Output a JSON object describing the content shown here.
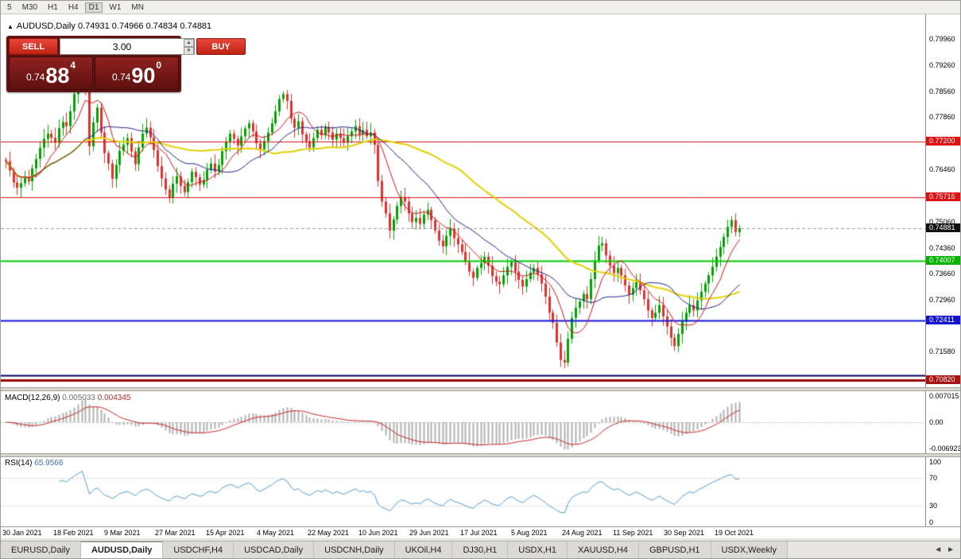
{
  "toolbar": {
    "timeframes": [
      {
        "label": "5"
      },
      {
        "label": "M30"
      },
      {
        "label": "H1"
      },
      {
        "label": "H4"
      },
      {
        "label": "D1",
        "active": true
      },
      {
        "label": "W1"
      },
      {
        "label": "MN"
      }
    ]
  },
  "header": {
    "collapse_icon": "▲",
    "title": "AUDUSD,Daily",
    "ohlc": "0.74931 0.74966 0.74834 0.74881"
  },
  "trade_panel": {
    "sell_label": "SELL",
    "buy_label": "BUY",
    "volume": "3.00",
    "spin_up": "▲",
    "spin_down": "▼",
    "sell": {
      "prefix": "0.74",
      "big": "88",
      "sup": "4"
    },
    "buy": {
      "prefix": "0.74",
      "big": "90",
      "sup": "0"
    }
  },
  "price_axis": {
    "ticks": [
      {
        "label": "0.79960",
        "price": 0.7996
      },
      {
        "label": "0.79260",
        "price": 0.7926
      },
      {
        "label": "0.78560",
        "price": 0.7856
      },
      {
        "label": "0.77860",
        "price": 0.7786
      },
      {
        "label": "0.76460",
        "price": 0.7646
      },
      {
        "label": "0.75060",
        "price": 0.7506
      },
      {
        "label": "0.74360",
        "price": 0.7436
      },
      {
        "label": "0.73660",
        "price": 0.7366
      },
      {
        "label": "0.72960",
        "price": 0.7296
      },
      {
        "label": "0.71580",
        "price": 0.7158
      }
    ],
    "badges": [
      {
        "label": "0.77200",
        "price": 0.772,
        "bg": "#dd1111"
      },
      {
        "label": "0.75716",
        "price": 0.75716,
        "bg": "#dd1111"
      },
      {
        "label": "0.74881",
        "price": 0.74881,
        "bg": "#111111",
        "current": true
      },
      {
        "label": "0.74007",
        "price": 0.74007,
        "bg": "#00b400"
      },
      {
        "label": "0.72411",
        "price": 0.72411,
        "bg": "#1414cc"
      },
      {
        "label": "0.70820",
        "price": 0.7082,
        "bg": "#aa1111"
      }
    ]
  },
  "macd_panel": {
    "label": "MACD(12,26,9)",
    "value_main": "0.005033",
    "value_signal": "0.004345",
    "scale": [
      {
        "label": "0.007015",
        "value": 0.007015
      },
      {
        "label": "0.00",
        "value": 0
      },
      {
        "label": "-0.006923",
        "value": -0.006923
      }
    ]
  },
  "rsi_panel": {
    "label": "RSI(14)",
    "value": "65.9566",
    "scale": [
      {
        "label": "100",
        "value": 100
      },
      {
        "label": "70",
        "value": 70
      },
      {
        "label": "30",
        "value": 30
      },
      {
        "label": "0",
        "value": 0
      }
    ]
  },
  "x_axis": {
    "labels": [
      "30 Jan 2021",
      "18 Feb 2021",
      "9 Mar 2021",
      "27 Mar 2021",
      "15 Apr 2021",
      "4 May 2021",
      "22 May 2021",
      "10 Jun 2021",
      "29 Jun 2021",
      "17 Jul 2021",
      "5 Aug 2021",
      "24 Aug 2021",
      "11 Sep 2021",
      "30 Sep 2021",
      "19 Oct 2021"
    ]
  },
  "tabs": {
    "items": [
      {
        "label": "EURUSD,Daily"
      },
      {
        "label": "AUDUSD,Daily",
        "active": true
      },
      {
        "label": "USDCHF,H4"
      },
      {
        "label": "USDCAD,Daily"
      },
      {
        "label": "USDCNH,Daily"
      },
      {
        "label": "UKOil,H4"
      },
      {
        "label": "DJ30,H1"
      },
      {
        "label": "USDX,H1"
      },
      {
        "label": "XAUUSD,H4"
      },
      {
        "label": "GBPUSD,H1"
      },
      {
        "label": "USDX,Weekly"
      }
    ],
    "scroll_left": "◄",
    "scroll_right": "►"
  },
  "chart_data": {
    "type": "candlestick",
    "symbol": "AUDUSD",
    "timeframe": "Daily",
    "ohlc_display": {
      "open": "0.74931",
      "high": "0.74966",
      "low": "0.74834",
      "close": "0.74881"
    },
    "ylim": [
      0.7062,
      0.8062
    ],
    "first_open": 0.7672,
    "closes": [
      0.7668,
      0.7643,
      0.7611,
      0.7597,
      0.7609,
      0.7626,
      0.7614,
      0.7649,
      0.7674,
      0.7704,
      0.7728,
      0.7742,
      0.7731,
      0.7718,
      0.7757,
      0.7773,
      0.7762,
      0.7802,
      0.7848,
      0.7892,
      0.795,
      0.7868,
      0.7708,
      0.7772,
      0.7812,
      0.7745,
      0.769,
      0.7662,
      0.7621,
      0.7658,
      0.7696,
      0.7712,
      0.773,
      0.7694,
      0.766,
      0.7705,
      0.7742,
      0.7758,
      0.7732,
      0.7698,
      0.7655,
      0.7622,
      0.7592,
      0.757,
      0.7608,
      0.7628,
      0.7602,
      0.7585,
      0.7612,
      0.764,
      0.7625,
      0.7605,
      0.7618,
      0.7645,
      0.7662,
      0.764,
      0.7658,
      0.7695,
      0.772,
      0.7742,
      0.7728,
      0.771,
      0.7735,
      0.7756,
      0.777,
      0.7748,
      0.7716,
      0.77,
      0.7722,
      0.7745,
      0.777,
      0.7802,
      0.7835,
      0.7848,
      0.783,
      0.7782,
      0.7758,
      0.7775,
      0.774,
      0.7722,
      0.7705,
      0.773,
      0.7752,
      0.7738,
      0.776,
      0.7745,
      0.7726,
      0.7742,
      0.773,
      0.7718,
      0.7735,
      0.7748,
      0.7762,
      0.774,
      0.7752,
      0.7735,
      0.7745,
      0.7712,
      0.7615,
      0.756,
      0.7528,
      0.7482,
      0.7512,
      0.7548,
      0.7572,
      0.756,
      0.7528,
      0.7505,
      0.7516,
      0.75,
      0.7525,
      0.7538,
      0.751,
      0.7482,
      0.7455,
      0.744,
      0.7468,
      0.7488,
      0.7462,
      0.7445,
      0.7425,
      0.7398,
      0.7372,
      0.7355,
      0.7382,
      0.7395,
      0.7412,
      0.7388,
      0.736,
      0.7345,
      0.7338,
      0.7362,
      0.7385,
      0.7398,
      0.7372,
      0.735,
      0.7332,
      0.7352,
      0.737,
      0.7382,
      0.7365,
      0.734,
      0.7305,
      0.7262,
      0.7235,
      0.7182,
      0.7135,
      0.7128,
      0.7192,
      0.7248,
      0.7275,
      0.7292,
      0.7312,
      0.7298,
      0.7352,
      0.7402,
      0.7442,
      0.7448,
      0.7415,
      0.7388,
      0.7368,
      0.7382,
      0.7362,
      0.7335,
      0.731,
      0.7328,
      0.7345,
      0.7322,
      0.7298,
      0.7268,
      0.7248,
      0.7262,
      0.7282,
      0.7252,
      0.7225,
      0.7195,
      0.7172,
      0.7205,
      0.7238,
      0.7262,
      0.7282,
      0.7268,
      0.7295,
      0.7318,
      0.734,
      0.7362,
      0.7385,
      0.7412,
      0.7438,
      0.7465,
      0.7492,
      0.751,
      0.7478,
      0.7488
    ],
    "levels": [
      {
        "price": 0.772,
        "color": "#dd1111",
        "width": 1
      },
      {
        "price": 0.75716,
        "color": "#dd1111",
        "width": 1
      },
      {
        "price": 0.74007,
        "color": "#00cc00",
        "width": 2
      },
      {
        "price": 0.72411,
        "color": "#1414dd",
        "width": 2
      },
      {
        "price": 0.7095,
        "color": "#000066",
        "width": 2
      },
      {
        "price": 0.7082,
        "color": "#990000",
        "width": 3
      }
    ],
    "current_price": 0.74881,
    "candle_up_color": "#00a200",
    "candle_down_color": "#e03030",
    "ma": [
      {
        "period": 50,
        "color": "#e3cf00",
        "width": 2
      },
      {
        "period": 21,
        "color": "#1c1c8f",
        "width": 1
      },
      {
        "period": 8,
        "color": "#cc1111",
        "width": 1
      }
    ],
    "macd": {
      "fast": 12,
      "slow": 26,
      "signal": 9,
      "range": [
        -0.008,
        0.008
      ],
      "bar_color": "#b0b0b0",
      "signal_color": "#cc2222"
    },
    "rsi": {
      "period": 14,
      "levels": [
        70,
        30
      ],
      "color": "#4a9ad2"
    }
  }
}
